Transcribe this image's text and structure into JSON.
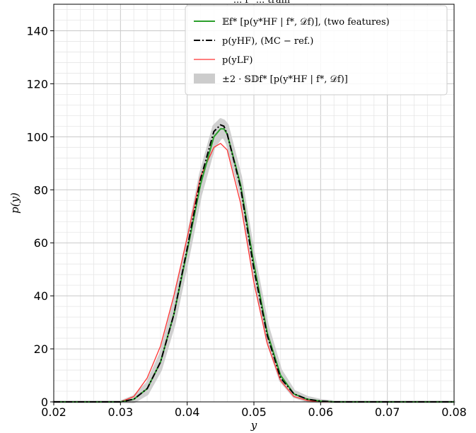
{
  "chart_data": {
    "type": "line",
    "title": "... f* ... train",
    "xlabel": "y",
    "ylabel": "p(y)",
    "xlim": [
      0.02,
      0.08
    ],
    "ylim": [
      0,
      150
    ],
    "xticks": [
      0.02,
      0.03,
      0.04,
      0.05,
      0.06,
      0.07,
      0.08
    ],
    "xtick_labels": [
      "0.02",
      "0.03",
      "0.04",
      "0.05",
      "0.06",
      "0.07",
      "0.08"
    ],
    "yticks": [
      0,
      20,
      40,
      60,
      80,
      100,
      120,
      140
    ],
    "ytick_labels": [
      "0",
      "20",
      "40",
      "60",
      "80",
      "100",
      "120",
      "140"
    ],
    "grid": "major and minor",
    "legend_position": "top-right",
    "series": [
      {
        "name": "𝔼f* [p(y*HF | f*, 𝒟f)],  (two features)",
        "style": "solid",
        "color": "#2ca02c",
        "x": [
          0.02,
          0.03,
          0.032,
          0.034,
          0.036,
          0.038,
          0.04,
          0.042,
          0.044,
          0.045,
          0.0455,
          0.046,
          0.048,
          0.05,
          0.052,
          0.054,
          0.056,
          0.058,
          0.06,
          0.062,
          0.064,
          0.07,
          0.08
        ],
        "y": [
          0,
          0,
          1,
          5,
          15,
          33,
          57,
          82,
          100,
          103,
          103,
          101,
          82,
          52,
          26,
          10,
          3,
          1,
          0.3,
          0,
          0,
          0,
          0
        ]
      },
      {
        "name": "p(yHF),  (MC − ref.)",
        "style": "dashdot",
        "color": "#000000",
        "x": [
          0.02,
          0.03,
          0.032,
          0.034,
          0.036,
          0.038,
          0.04,
          0.042,
          0.044,
          0.045,
          0.0455,
          0.046,
          0.048,
          0.05,
          0.052,
          0.054,
          0.056,
          0.058,
          0.06,
          0.062,
          0.064,
          0.07,
          0.08
        ],
        "y": [
          0,
          0,
          1,
          5,
          15,
          33,
          58,
          84,
          102,
          104.5,
          104,
          101,
          81,
          50,
          25,
          9,
          3,
          1,
          0.3,
          0,
          0,
          0,
          0
        ]
      },
      {
        "name": "p(yLF)",
        "style": "solid",
        "color": "#ff3333",
        "x": [
          0.02,
          0.03,
          0.032,
          0.034,
          0.036,
          0.038,
          0.04,
          0.042,
          0.044,
          0.045,
          0.046,
          0.048,
          0.05,
          0.052,
          0.054,
          0.056,
          0.058,
          0.06,
          0.062,
          0.064,
          0.07,
          0.08
        ],
        "y": [
          0,
          0,
          2,
          9,
          21,
          40,
          62,
          85,
          96,
          97.5,
          95,
          75,
          45,
          22,
          8,
          2,
          0.5,
          0,
          0,
          0,
          0,
          0
        ]
      },
      {
        "name": "±2 · 𝕊𝔻f* [p(y*HF | f*, 𝒟f)]",
        "style": "band",
        "color": "#cccccc",
        "x": [
          0.02,
          0.03,
          0.032,
          0.034,
          0.036,
          0.038,
          0.04,
          0.042,
          0.044,
          0.045,
          0.0455,
          0.046,
          0.048,
          0.05,
          0.052,
          0.054,
          0.056,
          0.058,
          0.06,
          0.062,
          0.064,
          0.07,
          0.08
        ],
        "lower": [
          0,
          0,
          0,
          3,
          12,
          29,
          53,
          78,
          96,
          99.5,
          100,
          97.5,
          79,
          49,
          23,
          8,
          2,
          0.3,
          0,
          0,
          0,
          0,
          0
        ],
        "upper": [
          0,
          0,
          2,
          7,
          18,
          37,
          61,
          86,
          104,
          106.5,
          106,
          104.5,
          85,
          55,
          29,
          12,
          4,
          1.7,
          0.6,
          0,
          0,
          0,
          0
        ]
      }
    ]
  }
}
